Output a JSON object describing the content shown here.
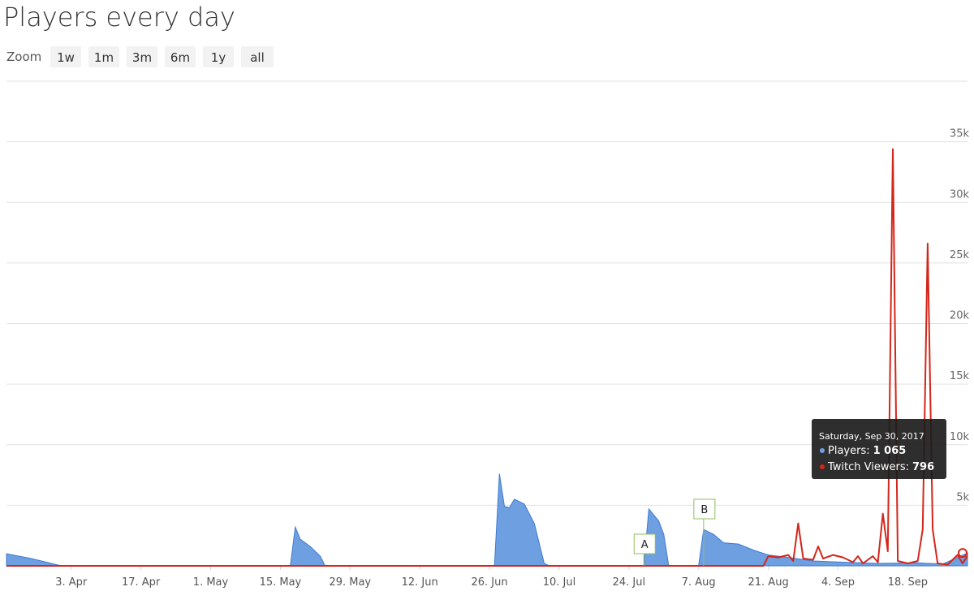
{
  "chart_data": {
    "type": "area-line",
    "title": "Players every day",
    "zoom_label": "Zoom",
    "zoom_buttons": [
      "1w",
      "1m",
      "3m",
      "6m",
      "1y",
      "all"
    ],
    "xlim": [
      "2017-03-21",
      "2017-09-30"
    ],
    "xticks": [
      {
        "value": "2017-04-03",
        "label": "3. Apr"
      },
      {
        "value": "2017-04-17",
        "label": "17. Apr"
      },
      {
        "value": "2017-05-01",
        "label": "1. May"
      },
      {
        "value": "2017-05-15",
        "label": "15. May"
      },
      {
        "value": "2017-05-29",
        "label": "29. May"
      },
      {
        "value": "2017-06-12",
        "label": "12. Jun"
      },
      {
        "value": "2017-06-26",
        "label": "26. Jun"
      },
      {
        "value": "2017-07-10",
        "label": "10. Jul"
      },
      {
        "value": "2017-07-24",
        "label": "24. Jul"
      },
      {
        "value": "2017-08-07",
        "label": "7. Aug"
      },
      {
        "value": "2017-08-21",
        "label": "21. Aug"
      },
      {
        "value": "2017-09-04",
        "label": "4. Sep"
      },
      {
        "value": "2017-09-18",
        "label": "18. Sep"
      }
    ],
    "ylim": [
      0,
      40000
    ],
    "yticks": [
      {
        "value": 5000,
        "label": "5k"
      },
      {
        "value": 10000,
        "label": "10k"
      },
      {
        "value": 15000,
        "label": "15k"
      },
      {
        "value": 20000,
        "label": "20k"
      },
      {
        "value": 25000,
        "label": "25k"
      },
      {
        "value": 30000,
        "label": "30k"
      },
      {
        "value": 35000,
        "label": "35k"
      },
      {
        "value": 40000,
        "label": ""
      }
    ],
    "grid": true,
    "series": [
      {
        "kind": "area",
        "color": "#6e9fe0",
        "line_color": "#3f7bd0",
        "x": [
          "2017-03-21",
          "2017-03-26",
          "2017-04-01",
          "2017-05-17",
          "2017-05-18",
          "2017-05-19",
          "2017-05-21",
          "2017-05-23",
          "2017-05-24",
          "2017-06-27",
          "2017-06-28",
          "2017-06-29",
          "2017-06-30",
          "2017-07-01",
          "2017-07-03",
          "2017-07-05",
          "2017-07-07",
          "2017-07-08",
          "2017-07-27",
          "2017-07-28",
          "2017-07-30",
          "2017-07-31",
          "2017-08-01",
          "2017-08-07",
          "2017-08-08",
          "2017-08-10",
          "2017-08-12",
          "2017-08-15",
          "2017-08-18",
          "2017-08-21",
          "2017-08-25",
          "2017-08-30",
          "2017-09-05",
          "2017-09-12",
          "2017-09-20",
          "2017-09-25",
          "2017-09-30"
        ],
        "values": [
          1000,
          600,
          0,
          0,
          3200,
          2200,
          1600,
          800,
          0,
          0,
          7600,
          4900,
          4800,
          5500,
          5100,
          3500,
          200,
          0,
          0,
          4700,
          3700,
          2600,
          0,
          0,
          3000,
          2600,
          1900,
          1800,
          1300,
          900,
          700,
          400,
          300,
          200,
          250,
          150,
          1065
        ]
      },
      {
        "kind": "line",
        "color": "#d4261a",
        "x": [
          "2017-03-21",
          "2017-08-20",
          "2017-08-21",
          "2017-08-23",
          "2017-08-25",
          "2017-08-26",
          "2017-08-27",
          "2017-08-28",
          "2017-08-30",
          "2017-08-31",
          "2017-09-01",
          "2017-09-03",
          "2017-09-05",
          "2017-09-07",
          "2017-09-08",
          "2017-09-09",
          "2017-09-11",
          "2017-09-12",
          "2017-09-13",
          "2017-09-14",
          "2017-09-15",
          "2017-09-16",
          "2017-09-18",
          "2017-09-20",
          "2017-09-21",
          "2017-09-22",
          "2017-09-23",
          "2017-09-24",
          "2017-09-26",
          "2017-09-28",
          "2017-09-29",
          "2017-09-30"
        ],
        "values": [
          0,
          0,
          800,
          700,
          900,
          400,
          3500,
          600,
          500,
          1600,
          600,
          900,
          700,
          300,
          800,
          200,
          800,
          300,
          4300,
          1200,
          34400,
          400,
          200,
          400,
          3000,
          26600,
          3000,
          200,
          100,
          900,
          200,
          796
        ]
      }
    ],
    "flags": [
      {
        "x": "2017-07-27",
        "label": "A"
      },
      {
        "x": "2017-08-08",
        "label": "B"
      }
    ],
    "tooltip": {
      "title": "Saturday, Sep 30, 2017",
      "rows": [
        {
          "label": "Players:",
          "value": "1 065"
        },
        {
          "label": "Twitch Viewers:",
          "value": "796"
        }
      ]
    }
  }
}
